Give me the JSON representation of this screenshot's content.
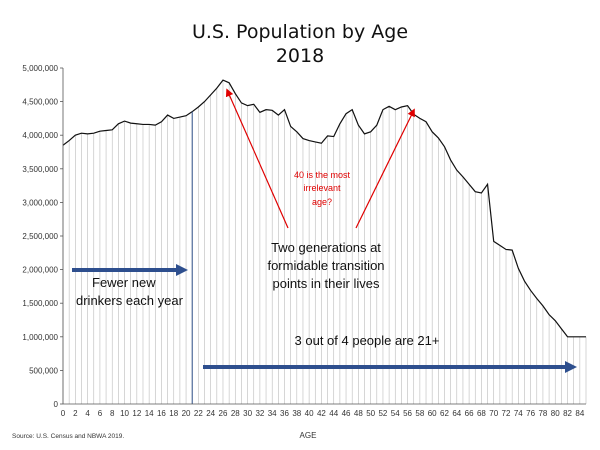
{
  "chart_data": {
    "type": "area",
    "title": "U.S. Population by Age",
    "subtitle": "2018",
    "xlabel": "AGE",
    "ylabel": "",
    "source": "Source: U.S. Census and NBWA 2019.",
    "xlim": [
      0,
      85
    ],
    "ylim": [
      0,
      5000000
    ],
    "yticks": [
      0,
      500000,
      1000000,
      1500000,
      2000000,
      2500000,
      3000000,
      3500000,
      4000000,
      4500000,
      5000000
    ],
    "ytick_labels": [
      "0",
      "500,000",
      "1,000,000",
      "1,500,000",
      "2,000,000",
      "2,500,000",
      "3,000,000",
      "3,500,000",
      "4,000,000",
      "4,500,000",
      "5,000,000"
    ],
    "xticks": [
      0,
      2,
      4,
      6,
      8,
      10,
      12,
      14,
      16,
      18,
      20,
      22,
      24,
      26,
      28,
      30,
      32,
      34,
      36,
      38,
      40,
      42,
      44,
      46,
      48,
      50,
      52,
      54,
      56,
      58,
      60,
      62,
      64,
      66,
      68,
      70,
      72,
      74,
      76,
      78,
      80,
      82,
      84
    ],
    "x": [
      0,
      1,
      2,
      3,
      4,
      5,
      6,
      7,
      8,
      9,
      10,
      11,
      12,
      13,
      14,
      15,
      16,
      17,
      18,
      19,
      20,
      21,
      22,
      23,
      24,
      25,
      26,
      27,
      28,
      29,
      30,
      31,
      32,
      33,
      34,
      35,
      36,
      37,
      38,
      39,
      40,
      41,
      42,
      43,
      44,
      45,
      46,
      47,
      48,
      49,
      50,
      51,
      52,
      53,
      54,
      55,
      56,
      57,
      58,
      59,
      60,
      61,
      62,
      63,
      64,
      65,
      66,
      67,
      68,
      69,
      70,
      71,
      72,
      73,
      74,
      75,
      76,
      77,
      78,
      79,
      80,
      81,
      82,
      83,
      84,
      85
    ],
    "series": [
      {
        "values": [
          3850000,
          3920000,
          4000000,
          4030000,
          4020000,
          4030000,
          4060000,
          4070000,
          4080000,
          4170000,
          4210000,
          4180000,
          4170000,
          4160000,
          4160000,
          4150000,
          4200000,
          4300000,
          4250000,
          4270000,
          4290000,
          4350000,
          4420000,
          4500000,
          4600000,
          4700000,
          4820000,
          4780000,
          4620000,
          4480000,
          4440000,
          4460000,
          4340000,
          4380000,
          4370000,
          4300000,
          4380000,
          4130000,
          4050000,
          3950000,
          3920000,
          3900000,
          3880000,
          3990000,
          3980000,
          4170000,
          4320000,
          4380000,
          4150000,
          4020000,
          4050000,
          4150000,
          4380000,
          4430000,
          4380000,
          4420000,
          4440000,
          4310000,
          4250000,
          4200000,
          4050000,
          3960000,
          3830000,
          3630000,
          3480000,
          3380000,
          3270000,
          3160000,
          3140000,
          3270000,
          2420000,
          2360000,
          2300000,
          2290000,
          2020000,
          1830000,
          1690000,
          1570000,
          1460000,
          1330000,
          1240000,
          1120000,
          1000000,
          1000000,
          1000000,
          1000000
        ]
      }
    ],
    "annotations": {
      "red_note": [
        "40 is the most",
        "irrelevant",
        "age?"
      ],
      "generations_note": [
        "Two generations at",
        "formidable transition",
        "points in their lives"
      ],
      "fewer_note": [
        "Fewer new",
        "drinkers each year"
      ],
      "majority_note": "3 out of 4 people are 21+"
    },
    "colors": {
      "line": "#111111",
      "fill_lines": "#bbbbbb",
      "divider": "#2f4f87",
      "arrow_blue": "#2e4f8e",
      "arrow_red": "#e00000"
    }
  }
}
